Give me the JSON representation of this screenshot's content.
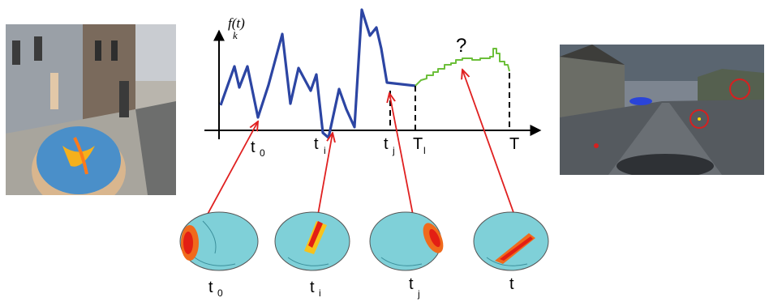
{
  "diagram": {
    "y_axis_label": {
      "main": "f(t)",
      "sub": "k"
    },
    "unknown_marker": "?",
    "timeline_labels": [
      {
        "main": "t",
        "sub": "0"
      },
      {
        "main": "t",
        "sub": "i"
      },
      {
        "main": "t",
        "sub": "j"
      },
      {
        "main": "T",
        "sub": "l"
      },
      {
        "main": "T",
        "sub": ""
      }
    ],
    "brain_labels": [
      {
        "main": "t",
        "sub": "0"
      },
      {
        "main": "t",
        "sub": "i"
      },
      {
        "main": "t",
        "sub": "j"
      },
      {
        "main": "t",
        "sub": ""
      }
    ]
  },
  "colors": {
    "observed_signal": "#2c45a3",
    "predicted_signal": "#6cbf3a",
    "arrow": "#e02020",
    "axis": "#000000"
  },
  "images": [
    "street-scene-with-brain-overlay-image",
    "brain-activation-maps",
    "virtual-town-street-view-image"
  ]
}
